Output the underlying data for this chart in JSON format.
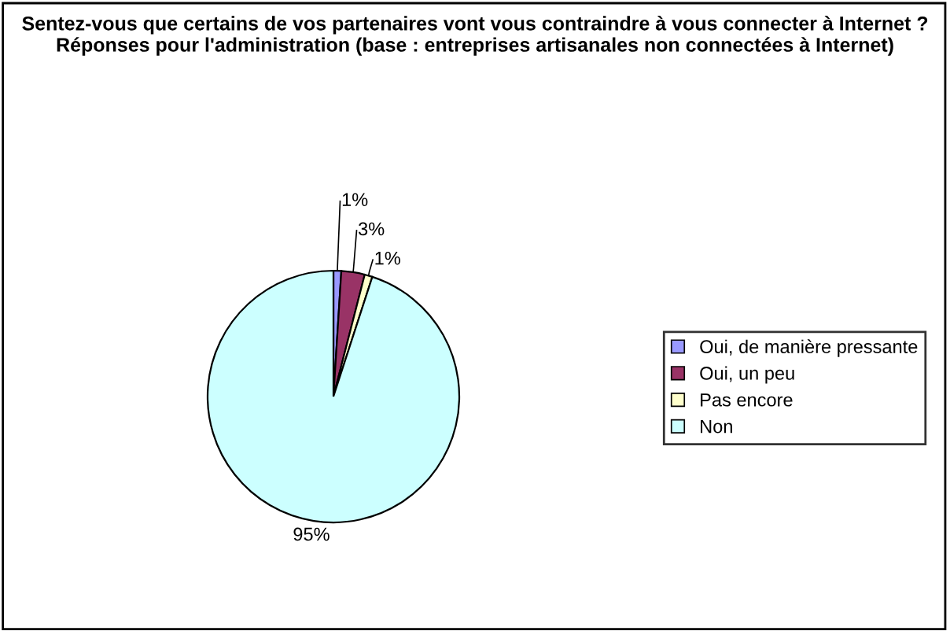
{
  "chart_data": {
    "type": "pie",
    "title": "Sentez-vous que certains de vos partenaires vont vous contraindre à vous connecter à Internet ?\nRéponses pour l'administration (base : entreprises artisanales non connectées à Internet)",
    "categories": [
      "Oui, de manière pressante",
      "Oui, un peu",
      "Pas encore",
      "Non"
    ],
    "values": [
      1,
      3,
      1,
      95
    ],
    "colors": [
      "#9999ff",
      "#993366",
      "#ffffcc",
      "#ccffff"
    ],
    "value_labels": [
      "1%",
      "3%",
      "1%",
      "95%"
    ],
    "legend": "right"
  }
}
